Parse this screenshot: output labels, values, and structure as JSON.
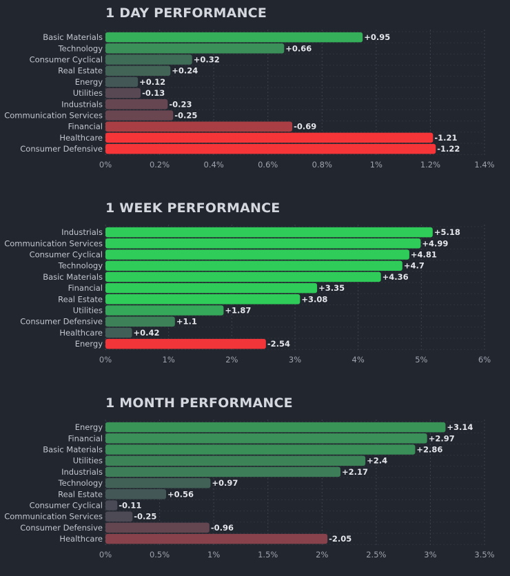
{
  "chart_data": [
    {
      "type": "bar",
      "orientation": "horizontal",
      "title": "1 DAY PERFORMANCE",
      "categories": [
        "Basic Materials",
        "Technology",
        "Consumer Cyclical",
        "Real Estate",
        "Energy",
        "Utilities",
        "Industrials",
        "Communication Services",
        "Financial",
        "Healthcare",
        "Consumer Defensive"
      ],
      "values": [
        0.95,
        0.66,
        0.32,
        0.24,
        0.12,
        -0.13,
        -0.23,
        -0.25,
        -0.69,
        -1.21,
        -1.22
      ],
      "value_labels": [
        "+0.95",
        "+0.66",
        "+0.32",
        "+0.24",
        "+0.12",
        "-0.13",
        "-0.23",
        "-0.25",
        "-0.69",
        "-1.21",
        "-1.22"
      ],
      "bar_length": "absolute value",
      "xlim": [
        0,
        1.4
      ],
      "xticks": [
        "0%",
        "0.2%",
        "0.4%",
        "0.6%",
        "0.8%",
        "1%",
        "1.2%",
        "1.4%"
      ],
      "color_max_abs": 1.22
    },
    {
      "type": "bar",
      "orientation": "horizontal",
      "title": "1 WEEK PERFORMANCE",
      "categories": [
        "Industrials",
        "Communication Services",
        "Consumer Cyclical",
        "Technology",
        "Basic Materials",
        "Financial",
        "Real Estate",
        "Utilities",
        "Consumer Defensive",
        "Healthcare",
        "Energy"
      ],
      "values": [
        5.18,
        4.99,
        4.81,
        4.7,
        4.36,
        3.35,
        3.08,
        1.87,
        1.1,
        0.42,
        -2.54
      ],
      "value_labels": [
        "+5.18",
        "+4.99",
        "+4.81",
        "+4.7",
        "+4.36",
        "+3.35",
        "+3.08",
        "+1.87",
        "+1.1",
        "+0.42",
        "-2.54"
      ],
      "bar_length": "absolute value",
      "xlim": [
        0,
        6
      ],
      "xticks": [
        "0%",
        "1%",
        "2%",
        "3%",
        "4%",
        "5%",
        "6%"
      ],
      "color_max_abs": 2.6
    },
    {
      "type": "bar",
      "orientation": "horizontal",
      "title": "1 MONTH PERFORMANCE",
      "categories": [
        "Energy",
        "Financial",
        "Basic Materials",
        "Utilities",
        "Industrials",
        "Technology",
        "Real Estate",
        "Consumer Cyclical",
        "Communication Services",
        "Consumer Defensive",
        "Healthcare"
      ],
      "values": [
        3.14,
        2.97,
        2.86,
        2.4,
        2.17,
        0.97,
        0.56,
        -0.11,
        -0.25,
        -0.96,
        -2.05
      ],
      "value_labels": [
        "+3.14",
        "+2.97",
        "+2.86",
        "+2.4",
        "+2.17",
        "+0.97",
        "+0.56",
        "-0.11",
        "-0.25",
        "-0.96",
        "-2.05"
      ],
      "bar_length": "absolute value",
      "xlim": [
        0,
        3.5
      ],
      "xticks": [
        "0%",
        "0.5%",
        "1%",
        "1.5%",
        "2%",
        "2.5%",
        "3%",
        "3.5%"
      ],
      "color_max_abs": 5.5
    }
  ],
  "colors": {
    "background": "#22262f",
    "grid": "#3d434e",
    "neutral": "#454a56",
    "positive_strong": "#30cc5a",
    "negative_strong": "#f63538"
  }
}
